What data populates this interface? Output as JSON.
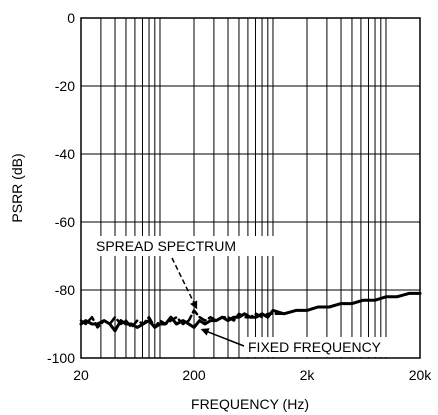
{
  "chart_data": {
    "type": "line",
    "title": "",
    "xlabel": "FREQUENCY (Hz)",
    "ylabel": "PSRR (dB)",
    "x_scale": "log",
    "xlim": [
      20,
      20000
    ],
    "ylim": [
      -100,
      0
    ],
    "grid": true,
    "x_ticks": [
      {
        "value": 20,
        "label": "20"
      },
      {
        "value": 200,
        "label": "200"
      },
      {
        "value": 2000,
        "label": "2k"
      },
      {
        "value": 20000,
        "label": "20k"
      }
    ],
    "y_ticks": [
      {
        "value": 0,
        "label": "0"
      },
      {
        "value": -20,
        "label": "-20"
      },
      {
        "value": -40,
        "label": "-40"
      },
      {
        "value": -60,
        "label": "-60"
      },
      {
        "value": -80,
        "label": "-80"
      },
      {
        "value": -100,
        "label": "-100"
      }
    ],
    "series": [
      {
        "name": "SPREAD SPECTRUM",
        "style": "dashed",
        "color": "#000000",
        "x": [
          20,
          22,
          25,
          28,
          32,
          36,
          40,
          45,
          50,
          56,
          63,
          71,
          80,
          90,
          100,
          112,
          125,
          140,
          160,
          180,
          200,
          224,
          250,
          280,
          315,
          355,
          400,
          450,
          500,
          560,
          630,
          710,
          800,
          900,
          1000,
          1250,
          1600,
          2000,
          2500,
          3150,
          4000,
          5000,
          6300,
          8000,
          10000,
          12500,
          16000,
          20000
        ],
        "y": [
          -89,
          -90,
          -88,
          -91,
          -89,
          -90,
          -88,
          -90,
          -89,
          -91,
          -89,
          -90,
          -88,
          -91,
          -89,
          -90,
          -89,
          -88,
          -90,
          -89,
          -86,
          -88,
          -89,
          -88,
          -89,
          -88,
          -88,
          -89,
          -87,
          -88,
          -88,
          -87,
          -88,
          -87,
          -87,
          -87,
          -86,
          -86,
          -85,
          -85,
          -84,
          -84,
          -83,
          -83,
          -82,
          -82,
          -81,
          -81
        ]
      },
      {
        "name": "FIXED FREQUENCY",
        "style": "solid",
        "color": "#000000",
        "x": [
          20,
          22,
          25,
          28,
          32,
          36,
          40,
          45,
          50,
          56,
          63,
          71,
          80,
          90,
          100,
          112,
          125,
          140,
          160,
          180,
          200,
          224,
          250,
          280,
          315,
          355,
          400,
          450,
          500,
          560,
          630,
          710,
          800,
          900,
          1000,
          1250,
          1600,
          2000,
          2500,
          3150,
          4000,
          5000,
          6300,
          8000,
          10000,
          12500,
          16000,
          20000
        ],
        "y": [
          -90,
          -89,
          -90,
          -90,
          -89,
          -90,
          -92,
          -89,
          -90,
          -90,
          -91,
          -90,
          -89,
          -91,
          -90,
          -90,
          -88,
          -90,
          -89,
          -90,
          -91,
          -89,
          -90,
          -89,
          -89,
          -88,
          -89,
          -88,
          -88,
          -87,
          -88,
          -88,
          -87,
          -88,
          -86,
          -87,
          -86,
          -86,
          -85,
          -85,
          -84,
          -84,
          -83,
          -83,
          -82,
          -82,
          -81,
          -81
        ]
      }
    ],
    "annotations": [
      {
        "text": "SPREAD SPECTRUM",
        "points_to": {
          "series": 0,
          "x": 220,
          "y": -86
        }
      },
      {
        "text": "FIXED FREQUENCY",
        "points_to": {
          "series": 1,
          "x": 220,
          "y": -91
        }
      }
    ]
  }
}
